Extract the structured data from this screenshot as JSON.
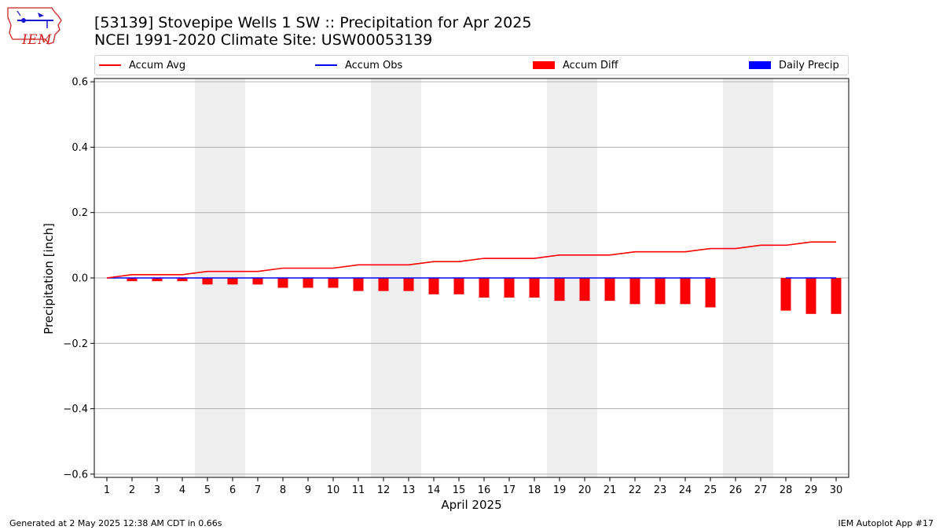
{
  "title_line1": "[53139] Stovepipe Wells 1 SW :: Precipitation for Apr 2025",
  "title_line2": "NCEI 1991-2020 Climate Site: USW00053139",
  "logo_text": "IEM",
  "footer_left": "Generated at 2 May 2025 12:38 AM CDT in 0.66s",
  "footer_right": "IEM Autoplot App #17",
  "colors": {
    "accum_avg": "#ff0000",
    "accum_obs": "#0000ff",
    "accum_diff": "#ff0000",
    "daily_precip": "#0000ff",
    "weekend_shade": "#eeeeee",
    "grid": "#b0b0b0"
  },
  "chart_data": {
    "type": "bar",
    "xlabel": "April 2025",
    "ylabel": "Precipitation [inch]",
    "ylim": [
      -0.61,
      0.61
    ],
    "yticks": [
      -0.6,
      -0.4,
      -0.2,
      0.0,
      0.2,
      0.4,
      0.6
    ],
    "ytick_labels": [
      "−0.6",
      "−0.4",
      "−0.2",
      "0.0",
      "0.2",
      "0.4",
      "0.6"
    ],
    "grid": "horizontal",
    "legend_position": "top",
    "x": [
      1,
      2,
      3,
      4,
      5,
      6,
      7,
      8,
      9,
      10,
      11,
      12,
      13,
      14,
      15,
      16,
      17,
      18,
      19,
      20,
      21,
      22,
      23,
      24,
      25,
      26,
      27,
      28,
      29,
      30
    ],
    "shaded_weekend_days": [
      [
        5,
        6
      ],
      [
        12,
        13
      ],
      [
        19,
        20
      ],
      [
        26,
        27
      ]
    ],
    "series": [
      {
        "name": "Accum Avg",
        "kind": "line",
        "values": [
          0.0,
          0.01,
          0.01,
          0.01,
          0.02,
          0.02,
          0.02,
          0.03,
          0.03,
          0.03,
          0.04,
          0.04,
          0.04,
          0.05,
          0.05,
          0.06,
          0.06,
          0.06,
          0.07,
          0.07,
          0.07,
          0.08,
          0.08,
          0.08,
          0.09,
          0.09,
          0.1,
          0.1,
          0.11,
          0.11
        ]
      },
      {
        "name": "Accum Obs",
        "kind": "line",
        "values": [
          0,
          0,
          0,
          0,
          0,
          0,
          0,
          0,
          0,
          0,
          0,
          0,
          0,
          0,
          0,
          0,
          0,
          0,
          0,
          0,
          0,
          0,
          0,
          0,
          0,
          null,
          null,
          0,
          0,
          0
        ]
      },
      {
        "name": "Accum Diff",
        "kind": "bar",
        "values": [
          0.0,
          -0.01,
          -0.01,
          -0.01,
          -0.02,
          -0.02,
          -0.02,
          -0.03,
          -0.03,
          -0.03,
          -0.04,
          -0.04,
          -0.04,
          -0.05,
          -0.05,
          -0.06,
          -0.06,
          -0.06,
          -0.07,
          -0.07,
          -0.07,
          -0.08,
          -0.08,
          -0.08,
          -0.09,
          null,
          null,
          -0.1,
          -0.11,
          -0.11
        ]
      },
      {
        "name": "Daily Precip",
        "kind": "bar",
        "values": [
          0,
          0,
          0,
          0,
          0,
          0,
          0,
          0,
          0,
          0,
          0,
          0,
          0,
          0,
          0,
          0,
          0,
          0,
          0,
          0,
          0,
          0,
          0,
          0,
          0,
          null,
          null,
          0,
          0,
          0
        ]
      }
    ]
  }
}
